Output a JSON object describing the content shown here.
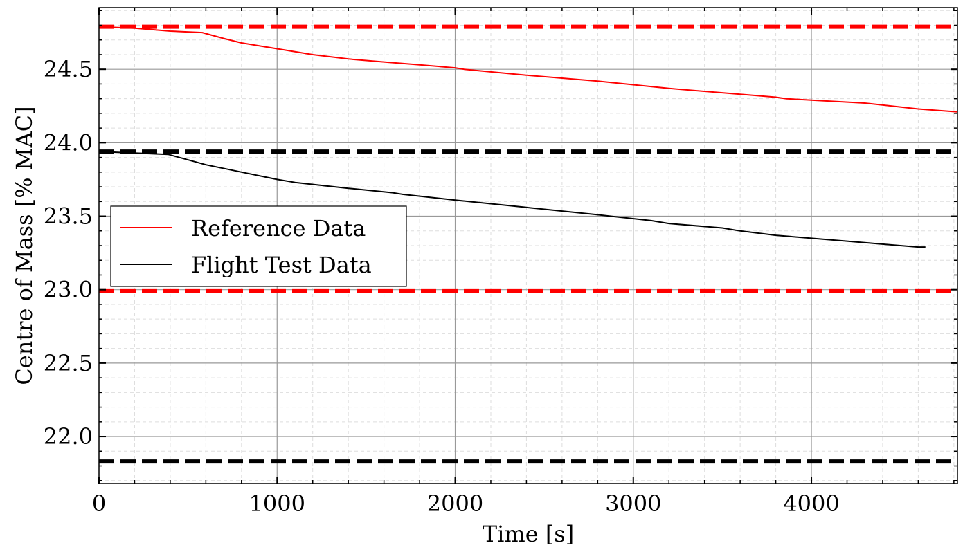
{
  "chart_data": {
    "type": "line",
    "xlabel": "Time [s]",
    "ylabel": "Centre of Mass [% MAC]",
    "xlim": [
      0,
      4820
    ],
    "ylim": [
      21.68,
      24.92
    ],
    "x_ticks": [
      0,
      1000,
      2000,
      3000,
      4000
    ],
    "y_ticks": [
      22.0,
      22.5,
      23.0,
      23.5,
      24.0,
      24.5
    ],
    "x_tick_labels": [
      "0",
      "1000",
      "2000",
      "3000",
      "4000"
    ],
    "y_tick_labels": [
      "22.0",
      "22.5",
      "23.0",
      "23.5",
      "24.0",
      "24.5"
    ],
    "grid": true,
    "minor_grid": true,
    "legend_position": "center-left",
    "series": [
      {
        "name": "Reference Data",
        "color": "#ff0000",
        "x": [
          0,
          200,
          400,
          580,
          700,
          800,
          1000,
          1200,
          1400,
          1600,
          1800,
          2000,
          2050,
          2400,
          2800,
          3200,
          3600,
          3800,
          3860,
          4000,
          4300,
          4600,
          4820
        ],
        "y": [
          24.79,
          24.78,
          24.76,
          24.75,
          24.71,
          24.68,
          24.64,
          24.6,
          24.57,
          24.55,
          24.53,
          24.51,
          24.5,
          24.46,
          24.42,
          24.37,
          24.33,
          24.31,
          24.3,
          24.29,
          24.27,
          24.23,
          24.21
        ]
      },
      {
        "name": "Flight Test Data",
        "color": "#000000",
        "x": [
          0,
          200,
          390,
          600,
          800,
          1000,
          1100,
          1400,
          1650,
          1700,
          2000,
          2400,
          2800,
          3100,
          3200,
          3500,
          3600,
          3800,
          4000,
          4300,
          4600,
          4640
        ],
        "y": [
          23.94,
          23.93,
          23.92,
          23.85,
          23.8,
          23.75,
          23.73,
          23.69,
          23.66,
          23.65,
          23.61,
          23.56,
          23.51,
          23.47,
          23.45,
          23.42,
          23.4,
          23.37,
          23.35,
          23.32,
          23.29,
          23.29
        ]
      }
    ],
    "reference_lines": [
      {
        "y": 24.79,
        "color": "#ff0000",
        "style": "dashed"
      },
      {
        "y": 23.94,
        "color": "#000000",
        "style": "dashed"
      },
      {
        "y": 22.99,
        "color": "#ff0000",
        "style": "dashed"
      },
      {
        "y": 21.83,
        "color": "#000000",
        "style": "dashed"
      }
    ]
  }
}
